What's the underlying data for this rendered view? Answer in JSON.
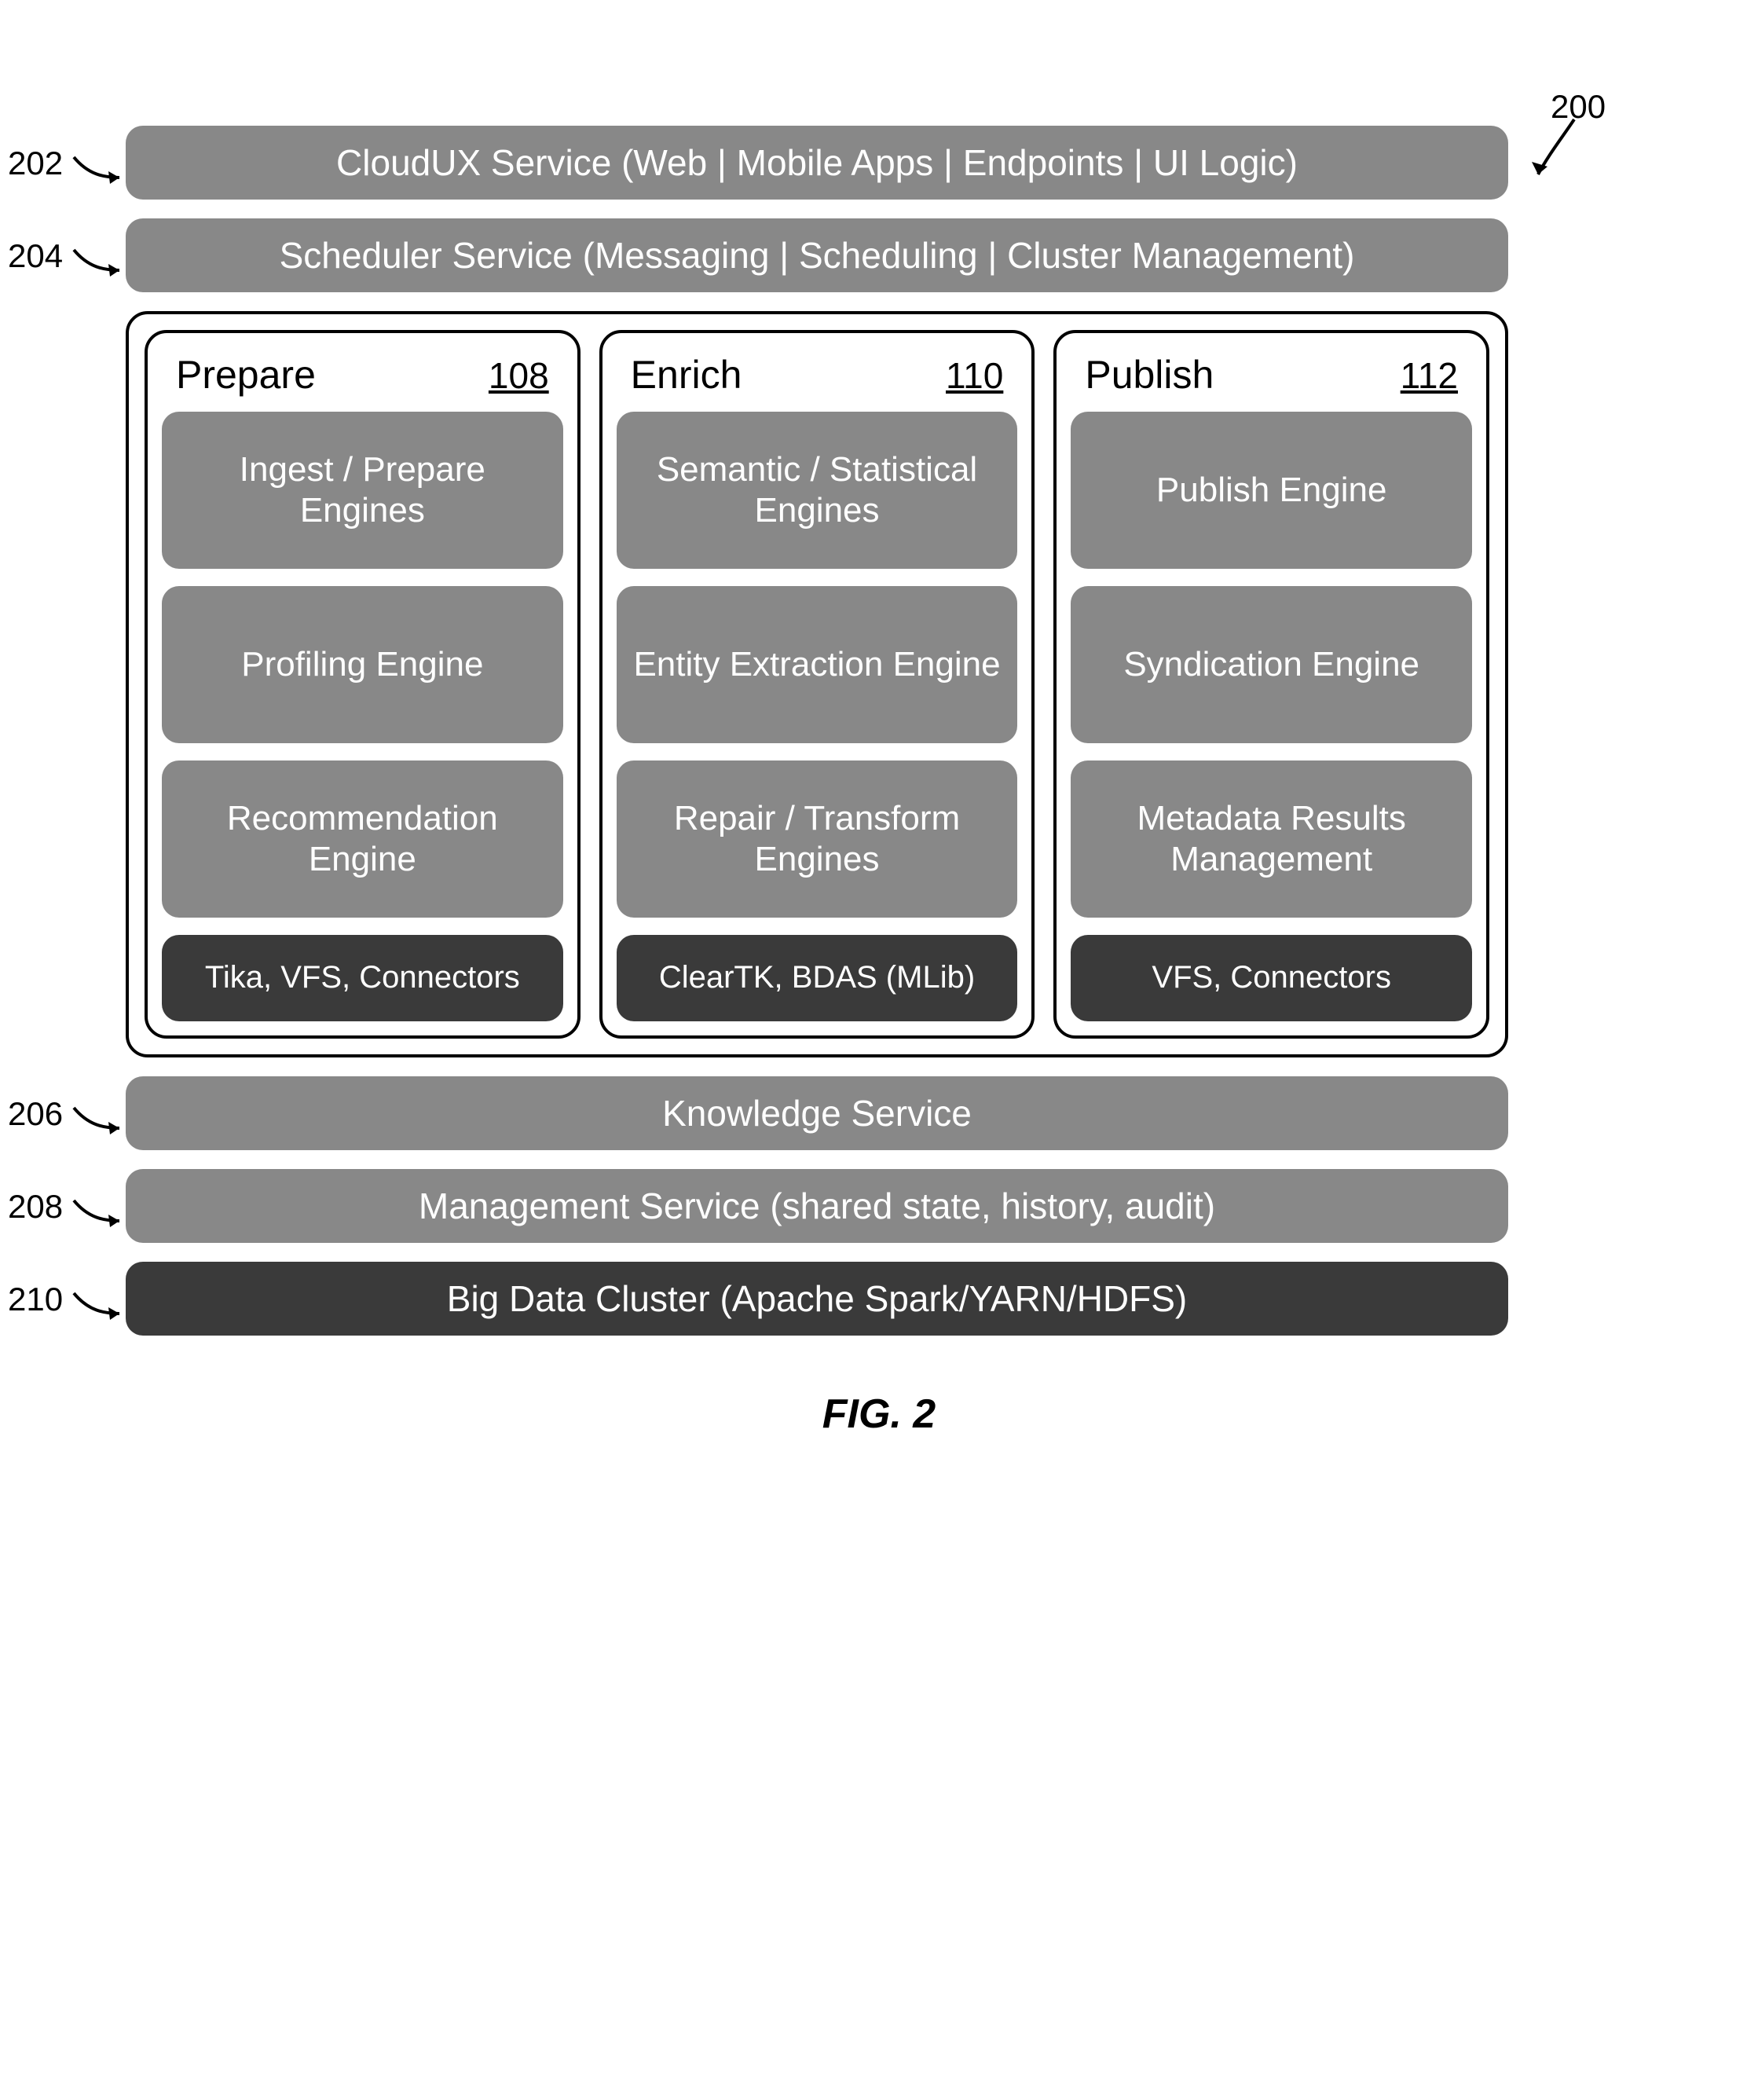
{
  "diagram": {
    "type": "layered-architecture",
    "figure_label": "FIG. 2",
    "overall_ref": "200",
    "colors": {
      "light_block": "#888888",
      "dark_block": "#3a3a3a",
      "text_on_block": "#ffffff",
      "frame_border": "#000000",
      "background": "#ffffff"
    },
    "top_bars": [
      {
        "ref": "202",
        "text": "CloudUX Service (Web | Mobile Apps | Endpoints | UI Logic)",
        "shade": "light"
      },
      {
        "ref": "204",
        "text": "Scheduler Service (Messaging | Scheduling | Cluster Management)",
        "shade": "light"
      }
    ],
    "columns": [
      {
        "title": "Prepare",
        "ref": "108",
        "cells": [
          {
            "text": "Ingest / Prepare Engines",
            "shade": "light"
          },
          {
            "text": "Profiling Engine",
            "shade": "light"
          },
          {
            "text": "Recommendation Engine",
            "shade": "light"
          },
          {
            "text": "Tika, VFS, Connectors",
            "shade": "dark"
          }
        ]
      },
      {
        "title": "Enrich",
        "ref": "110",
        "cells": [
          {
            "text": "Semantic / Statistical Engines",
            "shade": "light"
          },
          {
            "text": "Entity Extraction Engine",
            "shade": "light"
          },
          {
            "text": "Repair / Transform Engines",
            "shade": "light"
          },
          {
            "text": "ClearTK, BDAS (MLib)",
            "shade": "dark"
          }
        ]
      },
      {
        "title": "Publish",
        "ref": "112",
        "cells": [
          {
            "text": "Publish Engine",
            "shade": "light"
          },
          {
            "text": "Syndication Engine",
            "shade": "light"
          },
          {
            "text": "Metadata Results Management",
            "shade": "light"
          },
          {
            "text": "VFS, Connectors",
            "shade": "dark"
          }
        ]
      }
    ],
    "bottom_bars": [
      {
        "ref": "206",
        "text": "Knowledge Service",
        "shade": "light"
      },
      {
        "ref": "208",
        "text": "Management Service (shared state, history, audit)",
        "shade": "light"
      },
      {
        "ref": "210",
        "text": "Big Data Cluster (Apache Spark/YARN/HDFS)",
        "shade": "dark"
      }
    ]
  }
}
